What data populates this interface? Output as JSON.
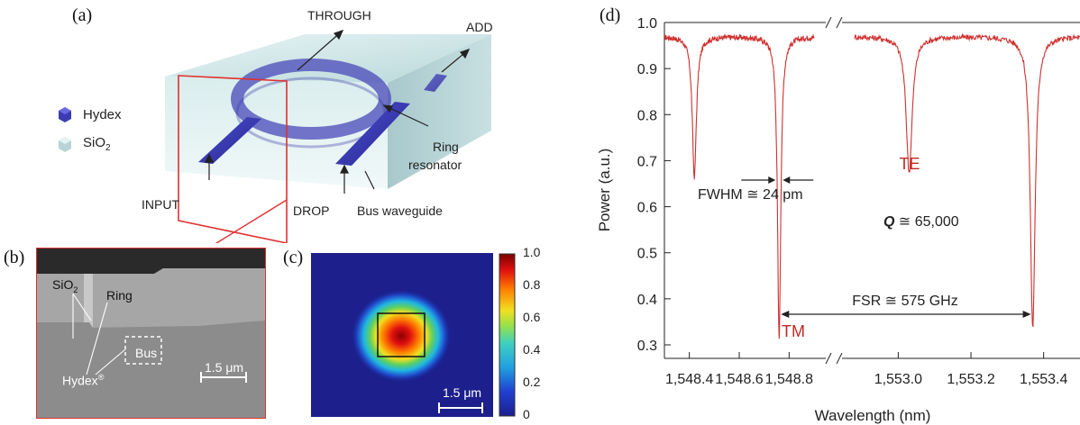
{
  "panel_labels": {
    "a": "(a)",
    "b": "(b)",
    "c": "(c)",
    "d": "(d)"
  },
  "panel_a": {
    "legend": [
      {
        "label": "Hydex",
        "color": "#3c3cb4"
      },
      {
        "label": "SiO",
        "sub": "2",
        "color": "#c8e0e0"
      }
    ],
    "port_labels": {
      "through": "THROUGH",
      "add": "ADD",
      "input": "INPUT",
      "drop": "DROP",
      "bus_waveguide": "Bus waveguide",
      "ring_resonator_line1": "Ring",
      "ring_resonator_line2": "resonator"
    },
    "highlight_color": "#e03030"
  },
  "panel_b": {
    "sio2_label": "SiO",
    "sio2_sub": "2",
    "ring_label": "Ring",
    "bus_label": "Bus",
    "hydex_label": "Hydex",
    "hydex_mark": "®",
    "scale_label": "1.5 μm"
  },
  "panel_c": {
    "scale_label": "1.5 μm",
    "colorbar_ticks": [
      "1.0",
      "0.8",
      "0.6",
      "0.4",
      "0.2",
      "0"
    ]
  },
  "chart_data": {
    "type": "line",
    "xlabel": "Wavelength (nm)",
    "ylabel": "Power (a.u.)",
    "ylim": [
      0.3,
      1.0
    ],
    "yticks": [
      "1.0",
      "0.9",
      "0.8",
      "0.7",
      "0.6",
      "0.5",
      "0.4",
      "0.3"
    ],
    "xticks": [
      "1,548.4",
      "1,548.6",
      "1,548.8",
      "1,553.0",
      "1,553.2",
      "1,553.4"
    ],
    "x_break_between": [
      "1,548.8",
      "1,553.0"
    ],
    "grid": false,
    "line_color": "#d03030",
    "baseline": 0.97,
    "dips": [
      {
        "x_segment": "left",
        "x": 1548.42,
        "min": 0.665
      },
      {
        "x_segment": "left",
        "x": 1548.76,
        "min": 0.315
      },
      {
        "x_segment": "right",
        "x": 1553.03,
        "min": 0.675
      },
      {
        "x_segment": "right",
        "x": 1553.37,
        "min": 0.335
      }
    ],
    "annotations": {
      "tm": "TM",
      "te": "TE",
      "fwhm": "FWHM ≅ 24 pm",
      "q_symbol": "Q",
      "q_value": "≅ 65,000",
      "fsr": "FSR ≅ 575 GHz"
    }
  }
}
